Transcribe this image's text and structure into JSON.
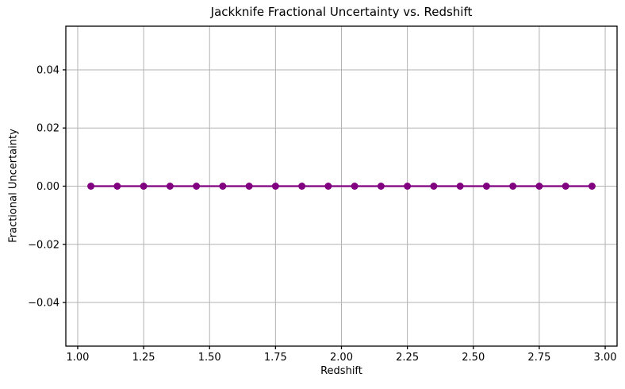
{
  "chart_data": {
    "type": "line",
    "title": "Jackknife Fractional Uncertainty vs. Redshift",
    "xlabel": "Redshift",
    "ylabel": "Fractional Uncertainty",
    "x": [
      1.05,
      1.15,
      1.25,
      1.35,
      1.45,
      1.55,
      1.65,
      1.75,
      1.85,
      1.95,
      2.05,
      2.15,
      2.25,
      2.35,
      2.45,
      2.55,
      2.65,
      2.75,
      2.85,
      2.95
    ],
    "y": [
      0.0,
      0.0,
      0.0,
      0.0,
      0.0,
      0.0,
      0.0,
      0.0,
      0.0,
      0.0,
      0.0,
      0.0,
      0.0,
      0.0,
      0.0,
      0.0,
      0.0,
      0.0,
      0.0,
      0.0
    ],
    "xlim": [
      0.955,
      3.045
    ],
    "ylim": [
      -0.055,
      0.055
    ],
    "x_ticks": [
      1.0,
      1.25,
      1.5,
      1.75,
      2.0,
      2.25,
      2.5,
      2.75,
      3.0
    ],
    "x_tick_labels": [
      "1.00",
      "1.25",
      "1.50",
      "1.75",
      "2.00",
      "2.25",
      "2.50",
      "2.75",
      "3.00"
    ],
    "y_ticks": [
      -0.04,
      -0.02,
      0.0,
      0.02,
      0.04
    ],
    "y_tick_labels": [
      "−0.04",
      "−0.02",
      "0.00",
      "0.02",
      "0.04"
    ],
    "grid": true,
    "legend": "none",
    "marker": "circle",
    "colors": {
      "series": "#800080",
      "grid": "#b2b2b2",
      "spine": "#000000",
      "background": "#ffffff"
    }
  }
}
